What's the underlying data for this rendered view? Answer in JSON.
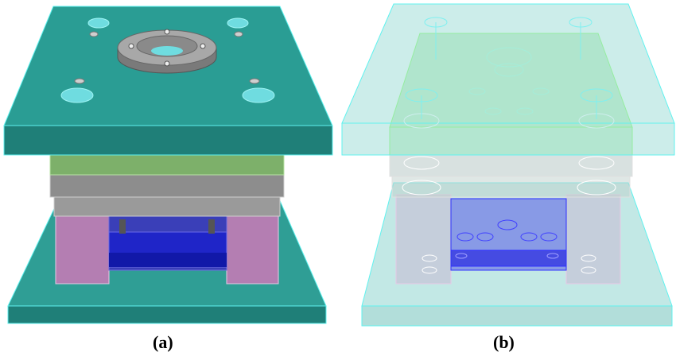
{
  "captions": {
    "a": "(a)",
    "b": "(b)"
  },
  "colors": {
    "plate_top": "#2a9d94",
    "plate_side": "#1f7f78",
    "plate_edge": "#5ff2ef",
    "hole": "#6fdce0",
    "ring": "#9a9a9a",
    "green_plate": "#7fb06a",
    "gray_plate": "#8c8c8c",
    "pink_block": "#b77ab5",
    "blue_ejector": "#1f25c8",
    "ghost_fill": "#8fd6d0",
    "ghost_green": "#8fe08a",
    "ghost_blue": "#5a5ae8"
  }
}
